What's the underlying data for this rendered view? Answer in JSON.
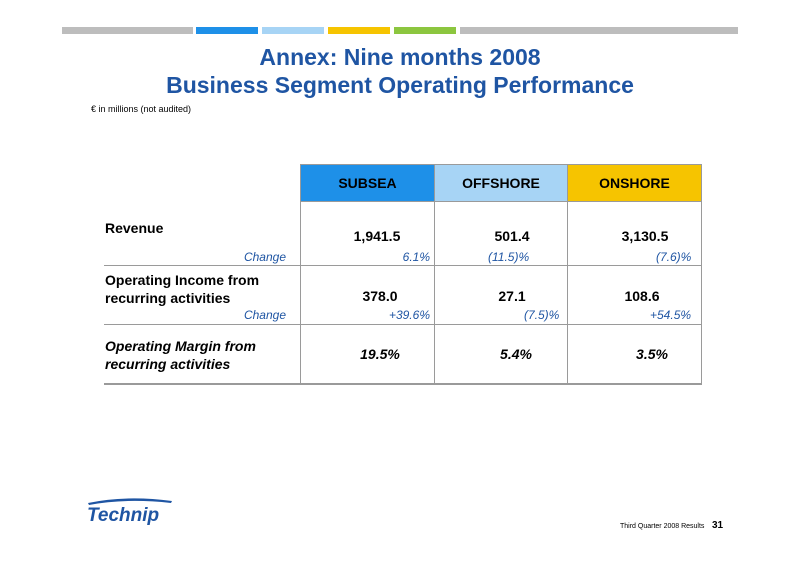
{
  "colors": {
    "title": "#1f55a3",
    "subsea": "#1e90e8",
    "offshore": "#a7d4f5",
    "onshore": "#f6c400",
    "stripe_gray": "#bdbdbd",
    "stripe_blue": "#1e90e8",
    "stripe_lightblue": "#a7d4f5",
    "stripe_yellow": "#f6c400",
    "stripe_green": "#8cc63f"
  },
  "header": {
    "title_line1": "Annex: Nine months 2008",
    "title_line2": "Business Segment Operating Performance",
    "note": "€ in millions (not audited)"
  },
  "table": {
    "columns": [
      "SUBSEA",
      "OFFSHORE",
      "ONSHORE"
    ],
    "rows": [
      {
        "label": "Revenue",
        "values": [
          "1,941.5",
          "501.4",
          "3,130.5"
        ],
        "change_label": "Change",
        "changes": [
          "6.1%",
          "(11.5)%",
          "(7.6)%"
        ]
      },
      {
        "label_line1": "Operating Income from",
        "label_line2": "recurring activities",
        "values": [
          "378.0",
          "27.1",
          "108.6"
        ],
        "change_label": "Change",
        "changes": [
          "+39.6%",
          "(7.5)%",
          "+54.5%"
        ]
      },
      {
        "label_line1": "Operating Margin from",
        "label_line2": "recurring activities",
        "values": [
          "19.5%",
          "5.4%",
          "3.5%"
        ]
      }
    ]
  },
  "footer": {
    "logo_text": "Technip",
    "text": "Third Quarter 2008 Results",
    "page": "31"
  }
}
